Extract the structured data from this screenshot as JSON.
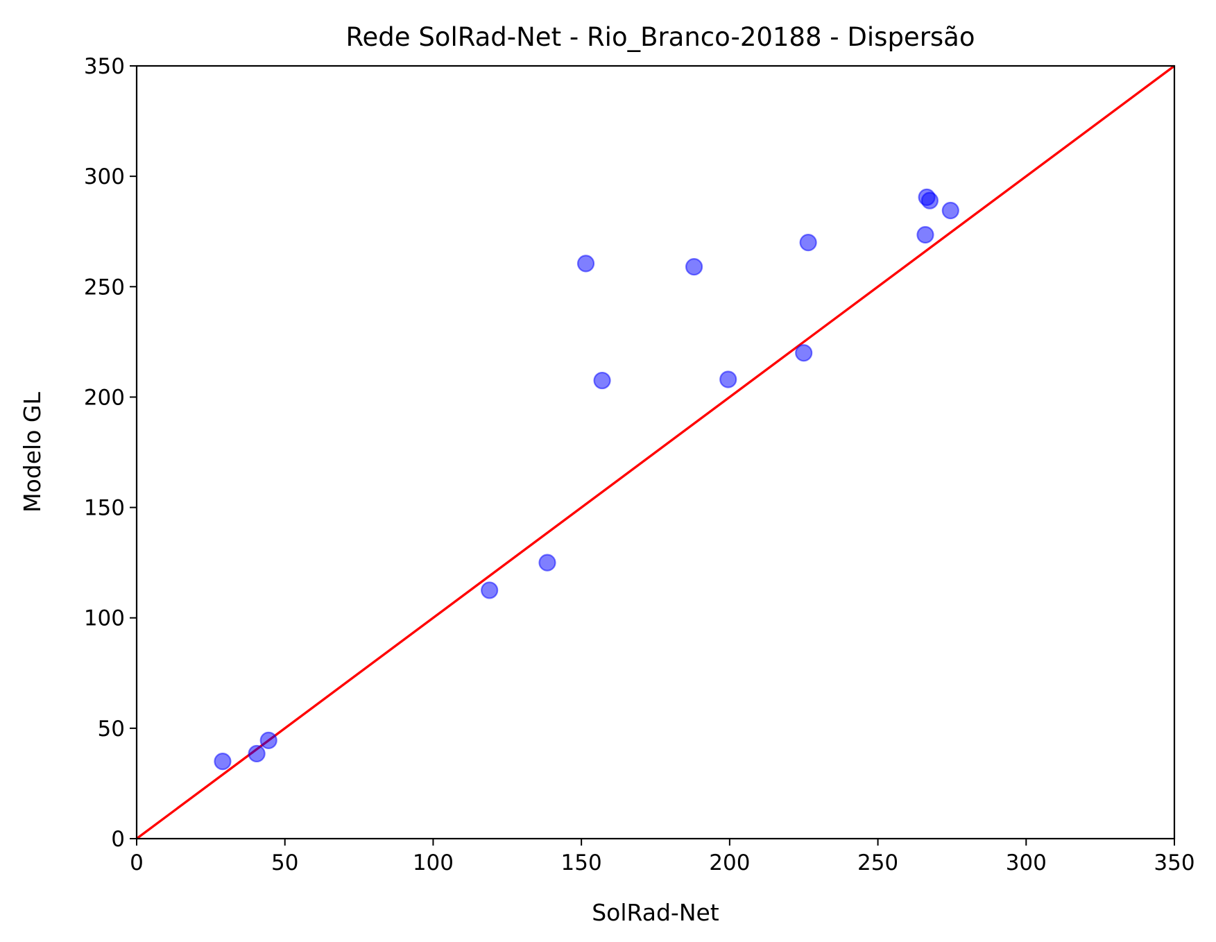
{
  "chart_data": {
    "type": "scatter",
    "title": "Rede SolRad-Net - Rio_Branco-20188 - Dispersão",
    "xlabel": "SolRad-Net",
    "ylabel": "Modelo GL",
    "xlim": [
      0,
      350
    ],
    "ylim": [
      0,
      350
    ],
    "xticks": [
      0,
      50,
      100,
      150,
      200,
      250,
      300,
      350
    ],
    "yticks": [
      0,
      50,
      100,
      150,
      200,
      250,
      300,
      350
    ],
    "grid": false,
    "points": {
      "color": "#0000ff",
      "alpha": 0.5,
      "x": [
        29,
        40.5,
        44.5,
        119,
        138.5,
        151.5,
        157,
        188,
        199.5,
        225,
        226.5,
        266,
        266.5,
        267.5,
        274.5
      ],
      "y": [
        35,
        38.5,
        44.5,
        112.5,
        125,
        260.5,
        207.5,
        259,
        208,
        220,
        270,
        273.5,
        290.5,
        289,
        284.5
      ]
    },
    "reference_line": {
      "color": "#ff0000",
      "x": [
        0,
        350
      ],
      "y": [
        0,
        350
      ]
    }
  }
}
